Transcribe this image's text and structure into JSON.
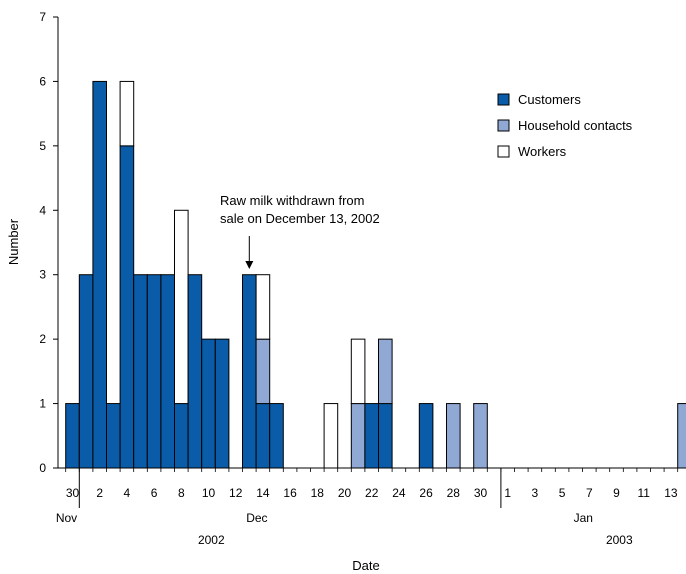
{
  "chart_data": {
    "type": "bar",
    "stacked": true,
    "xlabel": "Date",
    "ylabel": "Number",
    "ylim": [
      0,
      7
    ],
    "yticks": [
      0,
      1,
      2,
      3,
      4,
      5,
      6,
      7
    ],
    "grid": false,
    "legend_position": "top-right",
    "colors": {
      "Customers": "#0a5ca8",
      "Household contacts": "#8fa8d4",
      "Workers": "#ffffff",
      "outline": "#000000"
    },
    "dates": [
      "2002-11-30",
      "2002-12-01",
      "2002-12-02",
      "2002-12-03",
      "2002-12-04",
      "2002-12-05",
      "2002-12-06",
      "2002-12-07",
      "2002-12-08",
      "2002-12-09",
      "2002-12-10",
      "2002-12-11",
      "2002-12-12",
      "2002-12-13",
      "2002-12-14",
      "2002-12-15",
      "2002-12-16",
      "2002-12-17",
      "2002-12-18",
      "2002-12-19",
      "2002-12-20",
      "2002-12-21",
      "2002-12-22",
      "2002-12-23",
      "2002-12-24",
      "2002-12-25",
      "2002-12-26",
      "2002-12-27",
      "2002-12-28",
      "2002-12-29",
      "2002-12-30",
      "2002-12-31",
      "2003-01-01",
      "2003-01-02",
      "2003-01-03",
      "2003-01-04",
      "2003-01-05",
      "2003-01-06",
      "2003-01-07",
      "2003-01-08",
      "2003-01-09",
      "2003-01-10",
      "2003-01-11",
      "2003-01-12",
      "2003-01-13",
      "2003-01-14"
    ],
    "series": [
      {
        "name": "Customers",
        "values": [
          1,
          3,
          6,
          1,
          5,
          3,
          3,
          3,
          1,
          3,
          2,
          2,
          0,
          3,
          1,
          1,
          0,
          0,
          0,
          0,
          0,
          0,
          1,
          1,
          0,
          0,
          1,
          0,
          0,
          0,
          0,
          0,
          0,
          0,
          0,
          0,
          0,
          0,
          0,
          0,
          0,
          0,
          0,
          0,
          0,
          0
        ]
      },
      {
        "name": "Household contacts",
        "values": [
          0,
          0,
          0,
          0,
          0,
          0,
          0,
          0,
          0,
          0,
          0,
          0,
          0,
          0,
          1,
          0,
          0,
          0,
          0,
          0,
          0,
          1,
          0,
          1,
          0,
          0,
          0,
          0,
          1,
          0,
          1,
          0,
          0,
          0,
          0,
          0,
          0,
          0,
          0,
          0,
          0,
          0,
          0,
          0,
          0,
          1
        ]
      },
      {
        "name": "Workers",
        "values": [
          0,
          0,
          0,
          0,
          1,
          0,
          0,
          0,
          3,
          0,
          0,
          0,
          0,
          0,
          1,
          0,
          0,
          0,
          0,
          1,
          0,
          1,
          0,
          0,
          0,
          0,
          0,
          0,
          0,
          0,
          0,
          0,
          0,
          0,
          0,
          0,
          0,
          0,
          0,
          0,
          0,
          0,
          0,
          0,
          0,
          0
        ]
      }
    ],
    "tick_labels": [
      {
        "date": "2002-11-30",
        "label": "30"
      },
      {
        "date": "2002-12-02",
        "label": "2"
      },
      {
        "date": "2002-12-04",
        "label": "4"
      },
      {
        "date": "2002-12-06",
        "label": "6"
      },
      {
        "date": "2002-12-08",
        "label": "8"
      },
      {
        "date": "2002-12-10",
        "label": "10"
      },
      {
        "date": "2002-12-12",
        "label": "12"
      },
      {
        "date": "2002-12-14",
        "label": "14"
      },
      {
        "date": "2002-12-16",
        "label": "16"
      },
      {
        "date": "2002-12-18",
        "label": "18"
      },
      {
        "date": "2002-12-20",
        "label": "20"
      },
      {
        "date": "2002-12-22",
        "label": "22"
      },
      {
        "date": "2002-12-24",
        "label": "24"
      },
      {
        "date": "2002-12-26",
        "label": "26"
      },
      {
        "date": "2002-12-28",
        "label": "28"
      },
      {
        "date": "2002-12-30",
        "label": "30"
      },
      {
        "date": "2003-01-01",
        "label": "1"
      },
      {
        "date": "2003-01-03",
        "label": "3"
      },
      {
        "date": "2003-01-05",
        "label": "5"
      },
      {
        "date": "2003-01-07",
        "label": "7"
      },
      {
        "date": "2003-01-09",
        "label": "9"
      },
      {
        "date": "2003-01-11",
        "label": "11"
      },
      {
        "date": "2003-01-13",
        "label": "13"
      }
    ],
    "month_labels": [
      {
        "date": "2002-11-30",
        "label": "Nov"
      },
      {
        "date": "2002-12-14",
        "label": "Dec"
      },
      {
        "date": "2003-01-07",
        "label": "Jan"
      }
    ],
    "year_labels": [
      {
        "date": "2002-12-08",
        "label": "2002"
      },
      {
        "date": "2003-01-07",
        "label": "2003"
      }
    ],
    "month_dividers": [
      "2002-12-01",
      "2003-01-01"
    ],
    "annotation": {
      "date": "2002-12-13",
      "value": 3,
      "lines": [
        "Raw milk withdrawn from",
        "sale on December 13, 2002"
      ]
    }
  }
}
